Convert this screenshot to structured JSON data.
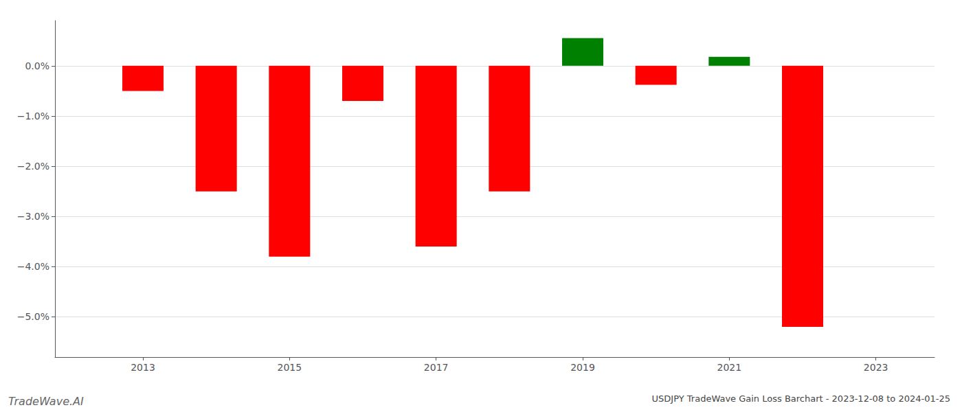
{
  "chart_data": {
    "type": "bar",
    "title": "USDJPY TradeWave Gain Loss Barchart - 2023-12-08 to 2024-01-25",
    "annotations": [
      "TradeWave.AI"
    ],
    "x": [
      2013,
      2014,
      2015,
      2016,
      2017,
      2018,
      2019,
      2020,
      2021,
      2022
    ],
    "values": [
      -0.5,
      -2.5,
      -3.8,
      -0.7,
      -3.6,
      -2.5,
      0.55,
      -0.38,
      0.18,
      -5.2
    ],
    "colors": [
      "#ff0000",
      "#ff0000",
      "#ff0000",
      "#ff0000",
      "#ff0000",
      "#ff0000",
      "#008000",
      "#ff0000",
      "#008000",
      "#ff0000"
    ],
    "xlim": [
      2011.8,
      2023.8
    ],
    "xticks": [
      2013,
      2015,
      2017,
      2019,
      2021,
      2023
    ],
    "ylim": [
      -5.8,
      0.9
    ],
    "yticks": [
      {
        "value": 0.0,
        "label": "0.0%"
      },
      {
        "value": -1.0,
        "label": "−1.0%"
      },
      {
        "value": -2.0,
        "label": "−2.0%"
      },
      {
        "value": -3.0,
        "label": "−3.0%"
      },
      {
        "value": -4.0,
        "label": "−4.0%"
      },
      {
        "value": -5.0,
        "label": "−5.0%"
      }
    ],
    "grid": true
  }
}
